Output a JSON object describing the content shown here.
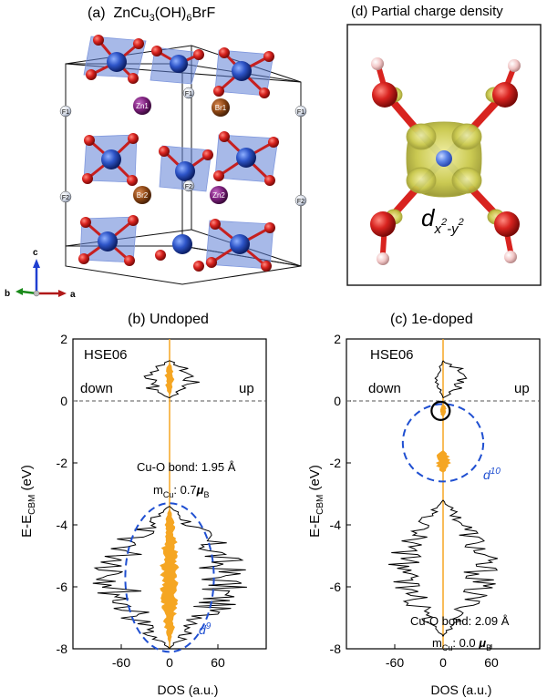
{
  "panel_a": {
    "label": "(a)",
    "formula": {
      "prefix": "ZnCu",
      "s1": "3",
      "mid": "(OH)",
      "s2": "6",
      "suffix": "BrF"
    },
    "atom_labels": {
      "f1": "F1",
      "f2": "F2",
      "zn1": "Zn1",
      "zn2": "Zn2",
      "br1": "Br1",
      "br2": "Br2"
    },
    "axes": {
      "c": "c",
      "b": "b",
      "a": "a"
    }
  },
  "panel_d": {
    "title": "(d)  Partial charge density",
    "orbital": {
      "d": "d",
      "sub_x": "x",
      "sup1": "2",
      "dash": "-",
      "sub_y": "y",
      "sup2": "2"
    }
  },
  "panel_b": {
    "title": "(b) Undoped",
    "method": "HSE06",
    "down": "down",
    "up": "up",
    "annot_bond": "Cu-O bond: 1.95 Å",
    "annot_m_prefix": "m",
    "annot_m_sub": "Cu",
    "annot_m_value": ": 0.7",
    "annot_m_unit": "μ",
    "annot_m_unit_sub": "B",
    "orbital_label": "d",
    "orbital_sup": "9"
  },
  "panel_c": {
    "title": "(c)  1e-doped",
    "method": "HSE06",
    "down": "down",
    "up": "up",
    "annot_bond": "Cu-O bond: 2.09 Å",
    "annot_m_prefix": "m",
    "annot_m_sub": "Cu",
    "annot_m_value": ": 0.0 ",
    "annot_m_unit": "μ",
    "annot_m_unit_sub": "B",
    "orbital_label": "d",
    "orbital_sup": "10"
  },
  "axis_labels": {
    "y_main": "E-E",
    "y_sub": "CBM",
    "y_unit": " (eV)",
    "x": "DOS (a.u.)"
  },
  "colors": {
    "orange": "#F5A623",
    "blue_dashed": "#1F4FD1",
    "cu_blue": "#2E55C8",
    "o_red": "#D8231F",
    "zn_purple": "#7A1E7A",
    "br_brown": "#8B4513",
    "density_yellow": "#C9C84A"
  },
  "chart_data": [
    {
      "type": "line",
      "title": "(b) Undoped",
      "xlabel": "DOS (a.u.)",
      "ylabel": "E-E_CBM (eV)",
      "xlim": [
        -120,
        120
      ],
      "ylim": [
        -8,
        2
      ],
      "xticks": [
        -60,
        0,
        60
      ],
      "yticks": [
        2,
        0,
        -2,
        -4,
        -6,
        -8
      ],
      "fermi_level": 0,
      "series": [
        {
          "kind": "total",
          "color": "#000000",
          "bands": [
            {
              "e": [
                0.1,
                1.3
              ],
              "up_peak": 40,
              "down_peak": -40
            },
            {
              "e": [
                -8.0,
                -3.4
              ],
              "up_peak": 100,
              "down_peak": -100
            }
          ]
        },
        {
          "kind": "projected",
          "color": "#F5A623",
          "bands": [
            {
              "e": [
                0.2,
                1.2
              ],
              "up_peak": 6,
              "down_peak": -6
            },
            {
              "e": [
                -7.8,
                -3.5
              ],
              "up_peak": 12,
              "down_peak": -12
            }
          ]
        }
      ],
      "annotations": [
        "HSE06",
        "down",
        "up",
        "Cu-O bond: 1.95 Å",
        "m_Cu: 0.7 μB",
        "d9"
      ]
    },
    {
      "type": "line",
      "title": "(c)  1e-doped",
      "xlabel": "DOS (a.u.)",
      "ylabel": "E-E_CBM (eV)",
      "xlim": [
        -120,
        120
      ],
      "ylim": [
        -8,
        2
      ],
      "xticks": [
        -60,
        0,
        60
      ],
      "yticks": [
        2,
        0,
        -2,
        -4,
        -6,
        -8
      ],
      "fermi_level": 0,
      "series": [
        {
          "kind": "total",
          "color": "#000000",
          "bands": [
            {
              "e": [
                0.1,
                1.3
              ],
              "up_peak": 40,
              "down_peak": -10
            },
            {
              "e": [
                -7.6,
                -3.2
              ],
              "up_peak": 70,
              "down_peak": -70
            }
          ]
        },
        {
          "kind": "projected",
          "color": "#F5A623",
          "bands": [
            {
              "e": [
                -0.5,
                -0.1
              ],
              "up_peak": 4,
              "down_peak": -4
            },
            {
              "e": [
                -2.3,
                -1.6
              ],
              "up_peak": 10,
              "down_peak": -10
            }
          ]
        }
      ],
      "annotations": [
        "HSE06",
        "down",
        "up",
        "Cu-O bond: 2.09 Å",
        "m_Cu: 0.0 μB",
        "d10"
      ]
    }
  ]
}
